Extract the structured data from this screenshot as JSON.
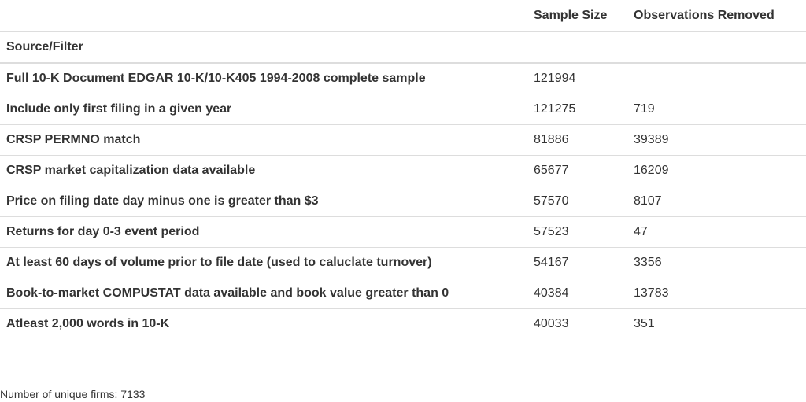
{
  "table": {
    "headers": {
      "sample_size": "Sample Size",
      "observations_removed": "Observations Removed",
      "source_filter": "Source/Filter"
    },
    "rows": [
      {
        "filter": "Full 10-K Document EDGAR 10-K/10-K405 1994-2008 complete sample",
        "sample_size": "121994",
        "removed": ""
      },
      {
        "filter": "Include only first filing in a given year",
        "sample_size": "121275",
        "removed": "719"
      },
      {
        "filter": "CRSP PERMNO match",
        "sample_size": "81886",
        "removed": "39389"
      },
      {
        "filter": "CRSP market capitalization data available",
        "sample_size": "65677",
        "removed": "16209"
      },
      {
        "filter": "Price on filing date day minus one is greater than $3",
        "sample_size": "57570",
        "removed": "8107"
      },
      {
        "filter": "Returns for day 0-3 event period",
        "sample_size": "57523",
        "removed": "47"
      },
      {
        "filter": "At least 60 days of volume prior to file date (used to caluclate turnover)",
        "sample_size": "54167",
        "removed": "3356"
      },
      {
        "filter": "Book-to-market COMPUSTAT data available and book value greater than 0",
        "sample_size": "40384",
        "removed": "13783"
      },
      {
        "filter": "Atleast 2,000 words in 10-K",
        "sample_size": "40033",
        "removed": "351"
      }
    ]
  },
  "footnote": {
    "label": "Number of unique firms:",
    "value": "7133"
  }
}
